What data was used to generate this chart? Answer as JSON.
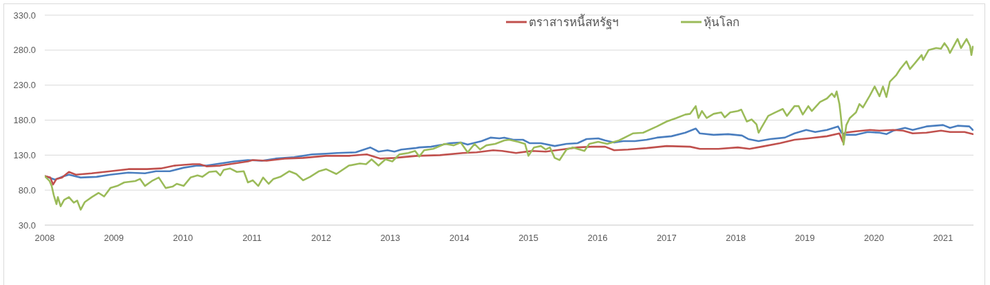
{
  "chart_data": {
    "type": "line",
    "xlim": [
      2008,
      2021.44
    ],
    "xticks": [
      2008,
      2009,
      2010,
      2011,
      2012,
      2013,
      2014,
      2015,
      2016,
      2017,
      2018,
      2019,
      2020,
      2021
    ],
    "ylim": [
      30,
      330
    ],
    "yticks": [
      {
        "value": 30,
        "label": "30.0"
      },
      {
        "value": 80,
        "label": "80.0"
      },
      {
        "value": 130,
        "label": "130.0"
      },
      {
        "value": 180,
        "label": "180.0"
      },
      {
        "value": 230,
        "label": "230.0"
      },
      {
        "value": 280,
        "label": "280.0"
      },
      {
        "value": 330,
        "label": "330.0"
      }
    ],
    "grid": "y",
    "legend": "top",
    "series": [
      {
        "color": "#4a7ebf",
        "x": [
          2008.0,
          2008.15,
          2008.25,
          2008.35,
          2008.52,
          2008.75,
          2008.95,
          2009.21,
          2009.45,
          2009.61,
          2009.81,
          2010.01,
          2010.21,
          2010.34,
          2010.54,
          2010.74,
          2010.94,
          2011.14,
          2011.34,
          2011.61,
          2011.87,
          2012.07,
          2012.23,
          2012.5,
          2012.71,
          2012.83,
          2012.96,
          2013.06,
          2013.16,
          2013.36,
          2013.42,
          2013.59,
          2013.76,
          2013.86,
          2014.02,
          2014.12,
          2014.32,
          2014.45,
          2014.58,
          2014.65,
          2014.78,
          2014.92,
          2015.02,
          2015.18,
          2015.38,
          2015.55,
          2015.71,
          2015.84,
          2016.01,
          2016.11,
          2016.24,
          2016.37,
          2016.54,
          2016.71,
          2016.86,
          2017.07,
          2017.27,
          2017.42,
          2017.48,
          2017.68,
          2017.89,
          2018.09,
          2018.18,
          2018.33,
          2018.5,
          2018.71,
          2018.85,
          2019.02,
          2019.15,
          2019.32,
          2019.48,
          2019.53,
          2019.6,
          2019.74,
          2019.91,
          2020.08,
          2020.18,
          2020.28,
          2020.45,
          2020.56,
          2020.76,
          2021.0,
          2021.1,
          2021.21,
          2021.38,
          2021.43
        ],
        "values": [
          100,
          95,
          99,
          102,
          98,
          99,
          102,
          105,
          104,
          107,
          107,
          112,
          115,
          115,
          118,
          121,
          123,
          122,
          125,
          127,
          131,
          132,
          133,
          134,
          141,
          135,
          137,
          135,
          138,
          140,
          141,
          142,
          145,
          147,
          148,
          145,
          150,
          155,
          154,
          155,
          152,
          152,
          147,
          147,
          143,
          146,
          147,
          153,
          154,
          151,
          148,
          150,
          150,
          152,
          155,
          157,
          162,
          168,
          161,
          159,
          160,
          158,
          153,
          150,
          153,
          155,
          161,
          166,
          163,
          166,
          171,
          162,
          159,
          159,
          163,
          162,
          160,
          165,
          169,
          166,
          171,
          173,
          169,
          172,
          171,
          166
        ]
      },
      {
        "name": "ตราสารหนี้สหรัฐฯ",
        "color": "#c0504d",
        "x": [
          2008.0,
          2008.08,
          2008.12,
          2008.17,
          2008.25,
          2008.35,
          2008.45,
          2008.68,
          2008.95,
          2009.21,
          2009.48,
          2009.68,
          2009.88,
          2010.14,
          2010.24,
          2010.34,
          2010.54,
          2010.74,
          2010.94,
          2011.01,
          2011.21,
          2011.47,
          2011.74,
          2012.07,
          2012.4,
          2012.66,
          2012.86,
          2013.06,
          2013.39,
          2013.72,
          2014.05,
          2014.25,
          2014.49,
          2014.62,
          2014.82,
          2015.05,
          2015.25,
          2015.48,
          2015.71,
          2015.91,
          2016.11,
          2016.24,
          2016.44,
          2016.71,
          2017.0,
          2017.34,
          2017.48,
          2017.75,
          2018.03,
          2018.2,
          2018.37,
          2018.64,
          2018.85,
          2019.05,
          2019.32,
          2019.5,
          2019.55,
          2019.58,
          2019.74,
          2019.94,
          2020.08,
          2020.28,
          2020.42,
          2020.56,
          2020.76,
          2020.97,
          2021.1,
          2021.31,
          2021.43
        ],
        "values": [
          100,
          98,
          88,
          96,
          98,
          106,
          102,
          104,
          107,
          110,
          110,
          111,
          115,
          117,
          117,
          114,
          115,
          118,
          121,
          123,
          122,
          125,
          126,
          129,
          129,
          131,
          125,
          126,
          129,
          130,
          133,
          134,
          137,
          136,
          133,
          136,
          135,
          138,
          141,
          142,
          142,
          137,
          138,
          140,
          143,
          142,
          139,
          139,
          141,
          139,
          142,
          147,
          152,
          154,
          157,
          161,
          149,
          162,
          164,
          166,
          165,
          166,
          165,
          161,
          162,
          165,
          163,
          163,
          160
        ]
      },
      {
        "name": "หุ้นโลก",
        "color": "#9bbb59",
        "x": [
          2008.0,
          2008.07,
          2008.1,
          2008.13,
          2008.17,
          2008.19,
          2008.23,
          2008.28,
          2008.35,
          2008.42,
          2008.47,
          2008.52,
          2008.58,
          2008.68,
          2008.78,
          2008.86,
          2008.95,
          2009.05,
          2009.15,
          2009.31,
          2009.38,
          2009.45,
          2009.55,
          2009.65,
          2009.75,
          2009.85,
          2009.91,
          2010.01,
          2010.11,
          2010.21,
          2010.28,
          2010.38,
          2010.48,
          2010.54,
          2010.59,
          2010.68,
          2010.78,
          2010.88,
          2010.94,
          2011.01,
          2011.09,
          2011.16,
          2011.24,
          2011.31,
          2011.41,
          2011.54,
          2011.64,
          2011.74,
          2011.84,
          2011.97,
          2012.07,
          2012.22,
          2012.4,
          2012.56,
          2012.65,
          2012.73,
          2012.83,
          2012.93,
          2013.03,
          2013.13,
          2013.26,
          2013.36,
          2013.42,
          2013.49,
          2013.62,
          2013.79,
          2013.92,
          2014.02,
          2014.12,
          2014.22,
          2014.3,
          2014.39,
          2014.52,
          2014.65,
          2014.72,
          2014.85,
          2014.95,
          2015.0,
          2015.08,
          2015.18,
          2015.25,
          2015.31,
          2015.38,
          2015.45,
          2015.55,
          2015.64,
          2015.81,
          2015.88,
          2016.01,
          2016.14,
          2016.31,
          2016.51,
          2016.66,
          2016.86,
          2017.0,
          2017.14,
          2017.27,
          2017.34,
          2017.42,
          2017.46,
          2017.51,
          2017.58,
          2017.68,
          2017.79,
          2017.84,
          2017.92,
          2018.03,
          2018.08,
          2018.16,
          2018.23,
          2018.3,
          2018.33,
          2018.37,
          2018.47,
          2018.57,
          2018.68,
          2018.74,
          2018.85,
          2018.91,
          2018.97,
          2019.05,
          2019.1,
          2019.22,
          2019.32,
          2019.39,
          2019.43,
          2019.46,
          2019.5,
          2019.52,
          2019.55,
          2019.56,
          2019.6,
          2019.65,
          2019.74,
          2019.79,
          2019.84,
          2019.94,
          2020.01,
          2020.08,
          2020.13,
          2020.18,
          2020.23,
          2020.32,
          2020.38,
          2020.47,
          2020.52,
          2020.59,
          2020.69,
          2020.71,
          2020.79,
          2020.9,
          2020.97,
          2021.02,
          2021.07,
          2021.1,
          2021.21,
          2021.26,
          2021.34,
          2021.39,
          2021.41,
          2021.43
        ],
        "values": [
          100,
          93,
          86,
          73,
          60,
          70,
          57,
          66,
          70,
          62,
          65,
          52,
          63,
          70,
          76,
          71,
          83,
          86,
          91,
          93,
          96,
          86,
          93,
          98,
          83,
          85,
          89,
          86,
          98,
          101,
          99,
          106,
          107,
          101,
          109,
          111,
          106,
          107,
          91,
          94,
          86,
          98,
          89,
          96,
          99,
          107,
          103,
          94,
          99,
          107,
          110,
          103,
          115,
          118,
          117,
          124,
          115,
          124,
          121,
          131,
          133,
          136,
          128,
          137,
          139,
          146,
          144,
          148,
          134,
          146,
          138,
          144,
          146,
          151,
          152,
          149,
          146,
          129,
          141,
          143,
          138,
          141,
          126,
          123,
          138,
          141,
          136,
          146,
          149,
          146,
          151,
          161,
          162,
          171,
          178,
          183,
          188,
          189,
          200,
          183,
          193,
          183,
          189,
          191,
          184,
          191,
          193,
          195,
          178,
          181,
          174,
          162,
          169,
          186,
          191,
          196,
          186,
          200,
          200,
          188,
          200,
          193,
          206,
          211,
          218,
          213,
          221,
          203,
          186,
          156,
          145,
          173,
          183,
          191,
          203,
          198,
          215,
          228,
          214,
          228,
          213,
          235,
          244,
          253,
          264,
          253,
          261,
          273,
          266,
          280,
          283,
          282,
          290,
          283,
          276,
          296,
          283,
          296,
          286,
          273,
          285
        ]
      }
    ]
  }
}
